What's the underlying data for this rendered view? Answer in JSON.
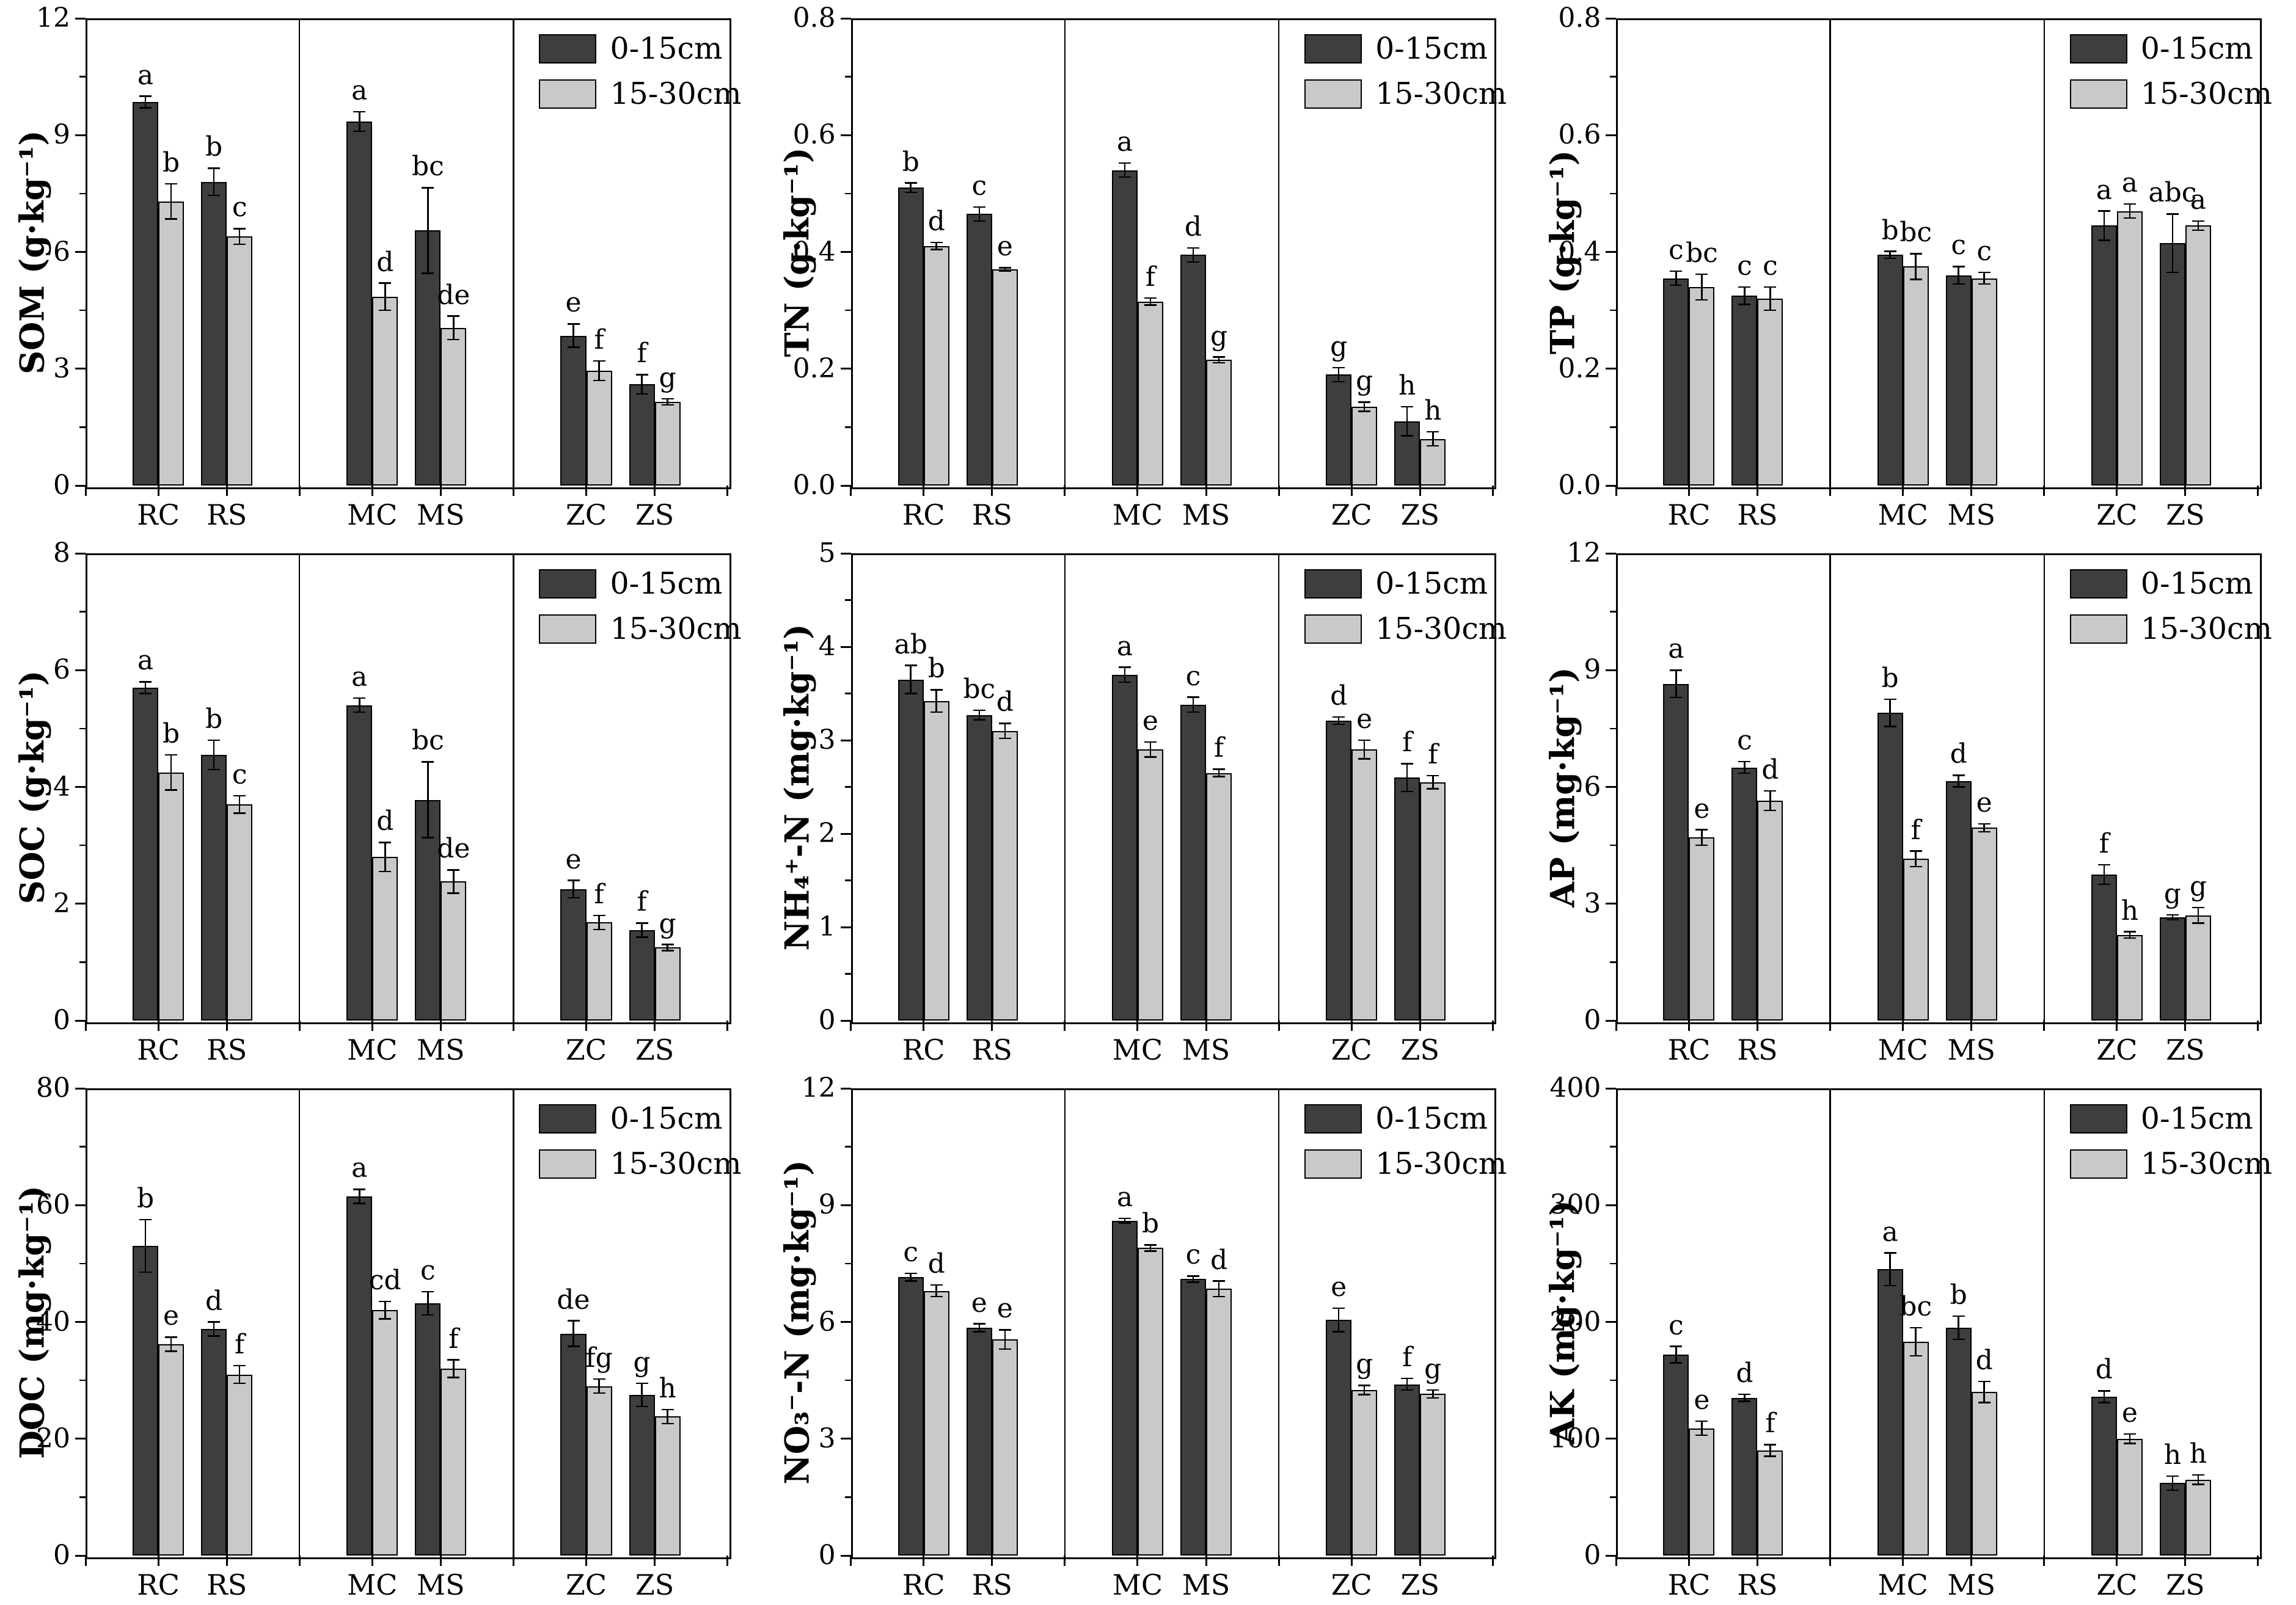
{
  "figure": {
    "legend": {
      "items": [
        {
          "label": "0-15cm",
          "color": "#3e3e3e"
        },
        {
          "label": "15-30cm",
          "color": "#c9c9c9"
        }
      ]
    },
    "colors": {
      "bar_dark": "#3e3e3e",
      "bar_light": "#c9c9c9",
      "axis": "#000000",
      "background": "#ffffff"
    },
    "categories": [
      "RC",
      "RS",
      "MC",
      "MS",
      "ZC",
      "ZS"
    ]
  },
  "chart_data": [
    {
      "type": "bar",
      "name": "SOM",
      "ylabel": "SOM (g·kg⁻¹)",
      "ylim": [
        0,
        12
      ],
      "ytick_vals": [
        0,
        3,
        6,
        9,
        12
      ],
      "ytick_labels": [
        "0",
        "3",
        "6",
        "9",
        "12"
      ],
      "categories": [
        "RC",
        "RS",
        "MC",
        "MS",
        "ZC",
        "ZS"
      ],
      "series": [
        {
          "name": "0-15cm",
          "values": [
            9.85,
            7.8,
            9.35,
            6.55,
            3.85,
            2.6
          ],
          "errors": [
            0.15,
            0.35,
            0.25,
            1.1,
            0.3,
            0.25
          ],
          "letters": [
            "a",
            "b",
            "a",
            "bc",
            "e",
            "f"
          ]
        },
        {
          "name": "15-30cm",
          "values": [
            7.3,
            6.4,
            4.85,
            4.05,
            2.95,
            2.15
          ],
          "errors": [
            0.45,
            0.2,
            0.35,
            0.3,
            0.25,
            0.08
          ],
          "letters": [
            "b",
            "c",
            "d",
            "de",
            "f",
            "g"
          ]
        }
      ]
    },
    {
      "type": "bar",
      "name": "TN",
      "ylabel": "TN (g·kg⁻¹)",
      "ylim": [
        0,
        0.8
      ],
      "ytick_vals": [
        0,
        0.2,
        0.4,
        0.6,
        0.8
      ],
      "ytick_labels": [
        "0.0",
        "0.2",
        "0.4",
        "0.6",
        "0.8"
      ],
      "categories": [
        "RC",
        "RS",
        "MC",
        "MS",
        "ZC",
        "ZS"
      ],
      "series": [
        {
          "name": "0-15cm",
          "values": [
            0.51,
            0.465,
            0.54,
            0.395,
            0.19,
            0.11
          ],
          "errors": [
            0.008,
            0.012,
            0.012,
            0.012,
            0.012,
            0.025
          ],
          "letters": [
            "b",
            "c",
            "a",
            "d",
            "g",
            "h"
          ]
        },
        {
          "name": "15-30cm",
          "values": [
            0.41,
            0.37,
            0.315,
            0.215,
            0.135,
            0.08
          ],
          "errors": [
            0.006,
            0.003,
            0.006,
            0.005,
            0.008,
            0.012
          ],
          "letters": [
            "d",
            "e",
            "f",
            "g",
            "g",
            "h"
          ]
        }
      ]
    },
    {
      "type": "bar",
      "name": "TP",
      "ylabel": "TP (g·kg⁻¹)",
      "ylim": [
        0,
        0.8
      ],
      "ytick_vals": [
        0,
        0.2,
        0.4,
        0.6,
        0.8
      ],
      "ytick_labels": [
        "0.0",
        "0.2",
        "0.4",
        "0.6",
        "0.8"
      ],
      "categories": [
        "RC",
        "RS",
        "MC",
        "MS",
        "ZC",
        "ZS"
      ],
      "series": [
        {
          "name": "0-15cm",
          "values": [
            0.355,
            0.325,
            0.395,
            0.36,
            0.445,
            0.415
          ],
          "errors": [
            0.012,
            0.015,
            0.006,
            0.015,
            0.025,
            0.05
          ],
          "letters": [
            "c",
            "c",
            "b",
            "c",
            "a",
            "abc"
          ]
        },
        {
          "name": "15-30cm",
          "values": [
            0.34,
            0.32,
            0.375,
            0.355,
            0.47,
            0.445
          ],
          "errors": [
            0.022,
            0.02,
            0.022,
            0.01,
            0.012,
            0.008
          ],
          "letters": [
            "bc",
            "c",
            "bc",
            "c",
            "a",
            "a"
          ]
        }
      ]
    },
    {
      "type": "bar",
      "name": "SOC",
      "ylabel": "SOC (g·kg⁻¹)",
      "ylim": [
        0,
        8
      ],
      "ytick_vals": [
        0,
        2,
        4,
        6,
        8
      ],
      "ytick_labels": [
        "0",
        "2",
        "4",
        "6",
        "8"
      ],
      "categories": [
        "RC",
        "RS",
        "MC",
        "MS",
        "ZC",
        "ZS"
      ],
      "series": [
        {
          "name": "0-15cm",
          "values": [
            5.7,
            4.55,
            5.4,
            3.78,
            2.25,
            1.55
          ],
          "errors": [
            0.1,
            0.25,
            0.12,
            0.65,
            0.15,
            0.12
          ],
          "letters": [
            "a",
            "b",
            "a",
            "bc",
            "e",
            "f"
          ]
        },
        {
          "name": "15-30cm",
          "values": [
            4.25,
            3.7,
            2.8,
            2.38,
            1.68,
            1.25
          ],
          "errors": [
            0.3,
            0.15,
            0.25,
            0.2,
            0.12,
            0.05
          ],
          "letters": [
            "b",
            "c",
            "d",
            "de",
            "f",
            "g"
          ]
        }
      ]
    },
    {
      "type": "bar",
      "name": "NH4-N",
      "ylabel": "NH₄⁺-N (mg·kg⁻¹)",
      "ylim": [
        0,
        5
      ],
      "ytick_vals": [
        0,
        1,
        2,
        3,
        4,
        5
      ],
      "ytick_labels": [
        "0",
        "1",
        "2",
        "3",
        "4",
        "5"
      ],
      "categories": [
        "RC",
        "RS",
        "MC",
        "MS",
        "ZC",
        "ZS"
      ],
      "series": [
        {
          "name": "0-15cm",
          "values": [
            3.65,
            3.27,
            3.7,
            3.38,
            3.21,
            2.6
          ],
          "errors": [
            0.15,
            0.05,
            0.08,
            0.08,
            0.04,
            0.15
          ],
          "letters": [
            "ab",
            "bc",
            "a",
            "c",
            "d",
            "f"
          ]
        },
        {
          "name": "15-30cm",
          "values": [
            3.42,
            3.1,
            2.9,
            2.65,
            2.9,
            2.55
          ],
          "errors": [
            0.12,
            0.08,
            0.08,
            0.04,
            0.1,
            0.07
          ],
          "letters": [
            "b",
            "d",
            "e",
            "f",
            "e",
            "f"
          ]
        }
      ]
    },
    {
      "type": "bar",
      "name": "AP",
      "ylabel": "AP (mg·kg⁻¹)",
      "ylim": [
        0,
        12
      ],
      "ytick_vals": [
        0,
        3,
        6,
        9,
        12
      ],
      "ytick_labels": [
        "0",
        "3",
        "6",
        "9",
        "12"
      ],
      "categories": [
        "RC",
        "RS",
        "MC",
        "MS",
        "ZC",
        "ZS"
      ],
      "series": [
        {
          "name": "0-15cm",
          "values": [
            8.65,
            6.5,
            7.9,
            6.15,
            3.75,
            2.65
          ],
          "errors": [
            0.35,
            0.15,
            0.35,
            0.15,
            0.25,
            0.06
          ],
          "letters": [
            "a",
            "c",
            "b",
            "d",
            "f",
            "g"
          ]
        },
        {
          "name": "15-30cm",
          "values": [
            4.7,
            5.65,
            4.15,
            4.95,
            2.2,
            2.7
          ],
          "errors": [
            0.2,
            0.25,
            0.2,
            0.1,
            0.08,
            0.2
          ],
          "letters": [
            "e",
            "d",
            "f",
            "e",
            "h",
            "g"
          ]
        }
      ]
    },
    {
      "type": "bar",
      "name": "DOC",
      "ylabel": "DOC (mg·kg⁻¹)",
      "ylim": [
        0,
        80
      ],
      "ytick_vals": [
        0,
        20,
        40,
        60,
        80
      ],
      "ytick_labels": [
        "0",
        "20",
        "40",
        "60",
        "80"
      ],
      "categories": [
        "RC",
        "RS",
        "MC",
        "MS",
        "ZC",
        "ZS"
      ],
      "series": [
        {
          "name": "0-15cm",
          "values": [
            53,
            38.8,
            61.5,
            43.2,
            38,
            27.5
          ],
          "errors": [
            4.5,
            1.2,
            1.2,
            2,
            2.2,
            2
          ],
          "letters": [
            "b",
            "d",
            "a",
            "c",
            "de",
            "g"
          ]
        },
        {
          "name": "15-30cm",
          "values": [
            36.2,
            31,
            42,
            32,
            29,
            23.8
          ],
          "errors": [
            1.2,
            1.5,
            1.5,
            1.5,
            1.2,
            1.2
          ],
          "letters": [
            "e",
            "f",
            "cd",
            "f",
            "fg",
            "h"
          ]
        }
      ]
    },
    {
      "type": "bar",
      "name": "NO3-N",
      "ylabel": "NO₃⁻-N (mg·kg⁻¹)",
      "ylim": [
        0,
        12
      ],
      "ytick_vals": [
        0,
        3,
        6,
        9,
        12
      ],
      "ytick_labels": [
        "0",
        "3",
        "6",
        "9",
        "12"
      ],
      "categories": [
        "RC",
        "RS",
        "MC",
        "MS",
        "ZC",
        "ZS"
      ],
      "series": [
        {
          "name": "0-15cm",
          "values": [
            7.15,
            5.85,
            8.6,
            7.1,
            6.05,
            4.4
          ],
          "errors": [
            0.1,
            0.1,
            0.06,
            0.08,
            0.3,
            0.15
          ],
          "letters": [
            "c",
            "e",
            "a",
            "c",
            "e",
            "f"
          ]
        },
        {
          "name": "15-30cm",
          "values": [
            6.8,
            5.55,
            7.9,
            6.85,
            4.25,
            4.15
          ],
          "errors": [
            0.15,
            0.25,
            0.08,
            0.2,
            0.12,
            0.1
          ],
          "letters": [
            "d",
            "e",
            "b",
            "d",
            "g",
            "g"
          ]
        }
      ]
    },
    {
      "type": "bar",
      "name": "AK",
      "ylabel": "AK (mg·kg⁻¹)",
      "ylim": [
        0,
        400
      ],
      "ytick_vals": [
        0,
        100,
        200,
        300,
        400
      ],
      "ytick_labels": [
        "0",
        "100",
        "200",
        "300",
        "400"
      ],
      "categories": [
        "RC",
        "RS",
        "MC",
        "MS",
        "ZC",
        "ZS"
      ],
      "series": [
        {
          "name": "0-15cm",
          "values": [
            172,
            135,
            245,
            195,
            136,
            62
          ],
          "errors": [
            7,
            3,
            14,
            10,
            5,
            6
          ],
          "letters": [
            "c",
            "d",
            "a",
            "b",
            "d",
            "h"
          ]
        },
        {
          "name": "15-30cm",
          "values": [
            109,
            90,
            183,
            140,
            100,
            65
          ],
          "errors": [
            6,
            5,
            12,
            9,
            4,
            4
          ],
          "letters": [
            "e",
            "f",
            "bc",
            "d",
            "e",
            "h"
          ]
        }
      ]
    }
  ]
}
